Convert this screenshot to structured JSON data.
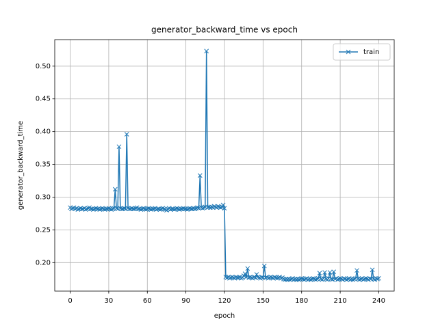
{
  "chart_data": {
    "type": "line",
    "title": "generator_backward_time vs epoch",
    "x_label": "epoch",
    "y_label": "generator_backward_time",
    "x": [
      0,
      1,
      2,
      3,
      4,
      5,
      6,
      7,
      8,
      9,
      10,
      11,
      12,
      13,
      14,
      15,
      16,
      17,
      18,
      19,
      20,
      21,
      22,
      23,
      24,
      25,
      26,
      27,
      28,
      29,
      30,
      31,
      32,
      33,
      34,
      35,
      36,
      37,
      38,
      39,
      40,
      41,
      42,
      43,
      44,
      45,
      46,
      47,
      48,
      49,
      50,
      51,
      52,
      53,
      54,
      55,
      56,
      57,
      58,
      59,
      60,
      61,
      62,
      63,
      64,
      65,
      66,
      67,
      68,
      69,
      70,
      71,
      72,
      73,
      74,
      75,
      76,
      77,
      78,
      79,
      80,
      81,
      82,
      83,
      84,
      85,
      86,
      87,
      88,
      89,
      90,
      91,
      92,
      93,
      94,
      95,
      96,
      97,
      98,
      99,
      100,
      101,
      102,
      103,
      104,
      105,
      106,
      107,
      108,
      109,
      110,
      111,
      112,
      113,
      114,
      115,
      116,
      117,
      118,
      119,
      120,
      121,
      122,
      123,
      124,
      125,
      126,
      127,
      128,
      129,
      130,
      131,
      132,
      133,
      134,
      135,
      136,
      137,
      138,
      139,
      140,
      141,
      142,
      143,
      144,
      145,
      146,
      147,
      148,
      149,
      150,
      151,
      152,
      153,
      154,
      155,
      156,
      157,
      158,
      159,
      160,
      161,
      162,
      163,
      164,
      165,
      166,
      167,
      168,
      169,
      170,
      171,
      172,
      173,
      174,
      175,
      176,
      177,
      178,
      179,
      180,
      181,
      182,
      183,
      184,
      185,
      186,
      187,
      188,
      189,
      190,
      191,
      192,
      193,
      194,
      195,
      196,
      197,
      198,
      199,
      200,
      201,
      202,
      203,
      204,
      205,
      206,
      207,
      208,
      209,
      210,
      211,
      212,
      213,
      214,
      215,
      216,
      217,
      218,
      219,
      220,
      221,
      222,
      223,
      224,
      225,
      226,
      227,
      228,
      229,
      230,
      231,
      232,
      233,
      234,
      235,
      236,
      237,
      238,
      239,
      240
    ],
    "series": [
      {
        "name": "train",
        "color": "#1f77b4",
        "values": [
          0.284,
          0.282,
          0.283,
          0.284,
          0.282,
          0.283,
          0.281,
          0.282,
          0.283,
          0.282,
          0.282,
          0.283,
          0.281,
          0.282,
          0.283,
          0.284,
          0.282,
          0.282,
          0.281,
          0.282,
          0.283,
          0.282,
          0.282,
          0.281,
          0.282,
          0.283,
          0.282,
          0.281,
          0.282,
          0.282,
          0.283,
          0.282,
          0.281,
          0.282,
          0.283,
          0.312,
          0.283,
          0.282,
          0.377,
          0.283,
          0.282,
          0.282,
          0.283,
          0.282,
          0.396,
          0.283,
          0.282,
          0.282,
          0.283,
          0.282,
          0.282,
          0.283,
          0.284,
          0.282,
          0.282,
          0.281,
          0.282,
          0.283,
          0.282,
          0.281,
          0.282,
          0.283,
          0.282,
          0.281,
          0.282,
          0.282,
          0.283,
          0.281,
          0.282,
          0.282,
          0.281,
          0.282,
          0.283,
          0.282,
          0.281,
          0.28,
          0.282,
          0.283,
          0.281,
          0.282,
          0.282,
          0.281,
          0.282,
          0.283,
          0.282,
          0.281,
          0.282,
          0.282,
          0.283,
          0.282,
          0.282,
          0.281,
          0.282,
          0.283,
          0.282,
          0.282,
          0.283,
          0.282,
          0.283,
          0.284,
          0.283,
          0.333,
          0.284,
          0.283,
          0.284,
          0.285,
          0.523,
          0.284,
          0.285,
          0.284,
          0.285,
          0.284,
          0.286,
          0.285,
          0.284,
          0.286,
          0.285,
          0.284,
          0.285,
          0.288,
          0.283,
          0.178,
          0.177,
          0.178,
          0.176,
          0.177,
          0.178,
          0.177,
          0.176,
          0.178,
          0.177,
          0.177,
          0.178,
          0.176,
          0.177,
          0.18,
          0.183,
          0.178,
          0.191,
          0.177,
          0.178,
          0.177,
          0.176,
          0.178,
          0.177,
          0.182,
          0.178,
          0.177,
          0.176,
          0.178,
          0.177,
          0.195,
          0.177,
          0.178,
          0.176,
          0.177,
          0.178,
          0.177,
          0.176,
          0.178,
          0.177,
          0.176,
          0.177,
          0.178,
          0.176,
          0.177,
          0.175,
          0.174,
          0.175,
          0.174,
          0.175,
          0.174,
          0.175,
          0.176,
          0.174,
          0.175,
          0.174,
          0.175,
          0.174,
          0.175,
          0.176,
          0.175,
          0.174,
          0.175,
          0.176,
          0.174,
          0.175,
          0.174,
          0.175,
          0.176,
          0.175,
          0.174,
          0.175,
          0.176,
          0.184,
          0.175,
          0.174,
          0.176,
          0.185,
          0.175,
          0.174,
          0.176,
          0.185,
          0.175,
          0.174,
          0.186,
          0.175,
          0.176,
          0.174,
          0.175,
          0.176,
          0.175,
          0.174,
          0.176,
          0.175,
          0.174,
          0.175,
          0.176,
          0.174,
          0.175,
          0.174,
          0.175,
          0.176,
          0.188,
          0.175,
          0.174,
          0.175,
          0.176,
          0.174,
          0.175,
          0.176,
          0.175,
          0.174,
          0.176,
          0.175,
          0.189,
          0.175,
          0.174,
          0.176,
          0.175,
          0.176
        ]
      }
    ],
    "xlim": [
      -12,
      252
    ],
    "xticks": [
      0,
      30,
      60,
      90,
      120,
      150,
      180,
      210,
      240
    ],
    "ylim": [
      0.1565,
      0.5405
    ],
    "yticks": [
      {
        "value": 0.2,
        "label": "0.20"
      },
      0.25,
      {
        "value": 0.3,
        "label": "0.30"
      },
      0.35,
      {
        "value": 0.4,
        "label": "0.40"
      },
      0.45,
      {
        "value": 0.5,
        "label": "0.50"
      }
    ],
    "grid": true,
    "legend": "upper right",
    "marker": "x"
  }
}
